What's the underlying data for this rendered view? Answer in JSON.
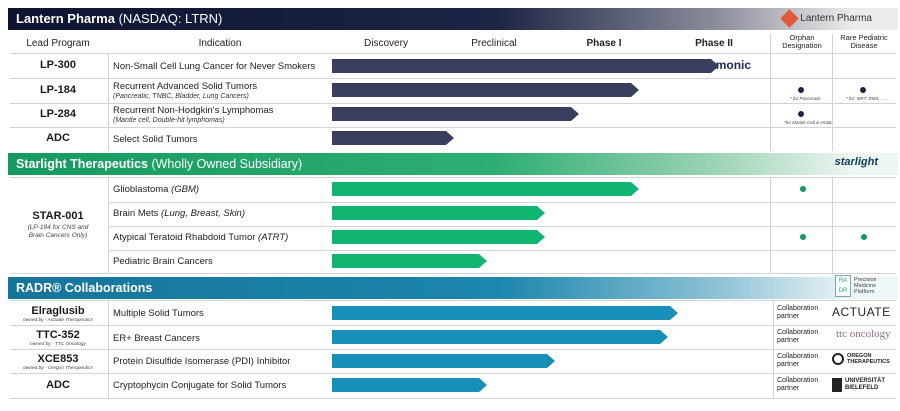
{
  "header": {
    "company": "Lantern Pharma",
    "ticker": " (NASDAQ: LTRN)",
    "logo_text": "Lantern Pharma"
  },
  "columns": {
    "lead_program": "Lead Program",
    "indication": "Indication",
    "discovery": "Discovery",
    "preclinical": "Preclinical",
    "phase1": "Phase I",
    "phase2": "Phase II",
    "orphan": "Orphan Designation",
    "rare_pediatric": "Rare Pediatric Disease"
  },
  "sections": {
    "starlight": {
      "title": "Starlight Therapeutics",
      "subtitle": " (Wholly Owned Subsidiary)",
      "logo_text": "starlight"
    },
    "radr": {
      "title": "RADR® Collaborations",
      "logo_mark": "RA DR",
      "logo_text": "Precision Medicine Platform"
    }
  },
  "colors": {
    "lantern_bar": "#3a3f5f",
    "starlight_bar": "#10b571",
    "radr_bar": "#1690b8",
    "starlight_band": "#149a60",
    "radr_band": "#16759a"
  },
  "chart_data": {
    "type": "bar",
    "stages": [
      "Discovery",
      "Preclinical",
      "Phase I",
      "Phase II"
    ],
    "progress_unit": "stage (0 = start of Discovery, 4 = end of Phase II)",
    "rows": [
      {
        "group": "lantern",
        "program": "LP-300",
        "indication": "Non-Small Cell Lung Cancer for Never Smokers",
        "detail": "",
        "progress": 3.55,
        "partner": "harmonic",
        "orphan": false,
        "orphan_note": "",
        "rare_pediatric": false,
        "rare_note": ""
      },
      {
        "group": "lantern",
        "program": "LP-184",
        "indication": "Recurrent Advanced Solid Tumors",
        "detail": "(Pancreatic, TNBC, Bladder, Lung Cancers)",
        "progress": 2.82,
        "orphan": true,
        "orphan_note": "* for Pancreatic",
        "rare_pediatric": true,
        "rare_note": "* for: MRT, RMS, ......"
      },
      {
        "group": "lantern",
        "program": "LP-284",
        "indication": "Recurrent Non-Hodgkin's Lymphomas",
        "detail": "(Mantle cell, Double-hit lymphomas)",
        "progress": 2.27,
        "orphan": true,
        "orphan_note": "*for Mantle Cell & HGBL",
        "rare_pediatric": false,
        "rare_note": ""
      },
      {
        "group": "lantern",
        "program": "ADC",
        "indication": "Select Solid Tumors",
        "detail": "",
        "progress": 1.12,
        "orphan": false,
        "orphan_note": "",
        "rare_pediatric": false,
        "rare_note": ""
      },
      {
        "group": "starlight",
        "program": "",
        "indication": "Glioblastoma",
        "indication_ital": " (GBM)",
        "progress": 2.82,
        "orphan": true,
        "rare_pediatric": false
      },
      {
        "group": "starlight",
        "program": "",
        "indication": "Brain Mets",
        "indication_ital": " (Lung, Breast, Skin)",
        "progress": 1.95,
        "orphan": false,
        "rare_pediatric": false
      },
      {
        "group": "starlight",
        "program": "",
        "indication": "Atypical Teratoid Rhabdoid Tumor",
        "indication_ital": " (ATRT)",
        "progress": 1.95,
        "orphan": true,
        "rare_pediatric": true
      },
      {
        "group": "starlight",
        "program": "",
        "indication": "Pediatric Brain Cancers",
        "indication_ital": "",
        "progress": 1.42,
        "orphan": false,
        "rare_pediatric": false
      },
      {
        "group": "radr",
        "program": "Elraglusib",
        "owner": "owned by - Actuate Therapeutics",
        "indication": "Multiple Solid Tumors",
        "progress": 3.17,
        "partner_label": "Collaboration partner",
        "partner": "ACTUATE"
      },
      {
        "group": "radr",
        "program": "TTC-352",
        "owner": "owned by - TTC Oncology",
        "indication": "ER+ Breast Cancers",
        "progress": 3.08,
        "partner_label": "Collaboration partner",
        "partner": "ttc oncology"
      },
      {
        "group": "radr",
        "program": "XCE853",
        "owner": "owned by - Oregon Therapeutics",
        "indication": "Protein Disulfide Isomerase (PDI) Inhibitor",
        "progress": 2.05,
        "partner_label": "Collaboration partner",
        "partner": "OREGON THERAPEUTICS"
      },
      {
        "group": "radr",
        "program": "ADC",
        "owner": "",
        "indication": "Cryptophycin Conjugate for Solid Tumors",
        "progress": 1.42,
        "partner_label": "Collaboration partner",
        "partner": "UNIVERSITÄT BIELEFELD"
      }
    ],
    "starlight_program": {
      "name": "STAR-001",
      "note1": "(LP-184 for CNS and",
      "note2": "Brain Cancers Only)"
    }
  }
}
